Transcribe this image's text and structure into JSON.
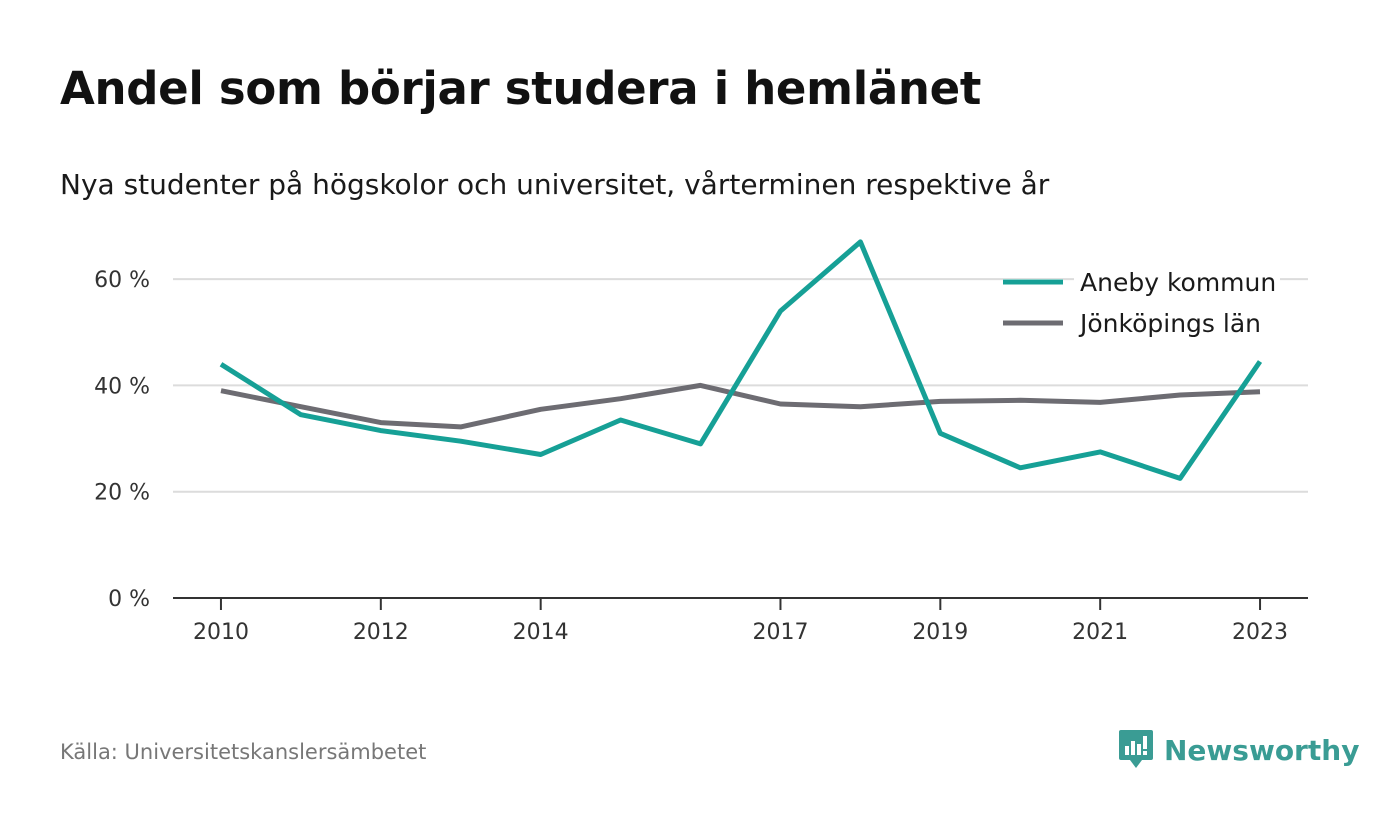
{
  "header": {
    "title": "Andel som börjar studera i hemlänet",
    "subtitle": "Nya studenter på högskolor och universitet, vårterminen respektive år"
  },
  "footer": {
    "source": "Källa: Universitetskanslersämbetet",
    "brand": "Newsworthy",
    "brand_icon": "newsworthy-logo-icon",
    "brand_color": "#3a9c94"
  },
  "chart_data": {
    "type": "line",
    "x": [
      2010,
      2011,
      2012,
      2013,
      2014,
      2015,
      2016,
      2017,
      2018,
      2019,
      2020,
      2021,
      2022,
      2023
    ],
    "x_tick_values": [
      2010,
      2012,
      2014,
      2017,
      2019,
      2021,
      2023
    ],
    "x_tick_labels": [
      "2010",
      "2012",
      "2014",
      "2017",
      "2019",
      "2021",
      "2023"
    ],
    "xlim": [
      2009.4,
      2023.6
    ],
    "ylim": [
      0,
      70
    ],
    "y_tick_values": [
      0,
      20,
      40,
      60
    ],
    "y_tick_labels": [
      "0 %",
      "20 %",
      "40 %",
      "60 %"
    ],
    "grid": true,
    "legend_position": "top-right",
    "series": [
      {
        "name": "Aneby kommun",
        "color": "#16a096",
        "values": [
          44,
          34.5,
          31.5,
          29.5,
          27,
          33.5,
          29,
          54,
          67,
          31,
          24.5,
          27.5,
          22.5,
          44.5
        ]
      },
      {
        "name": "Jönköpings län",
        "color": "#6d6c72",
        "values": [
          39,
          36,
          33,
          32.2,
          35.5,
          37.5,
          40,
          36.5,
          36,
          37,
          37.2,
          36.8,
          38.2,
          38.8
        ]
      }
    ]
  }
}
